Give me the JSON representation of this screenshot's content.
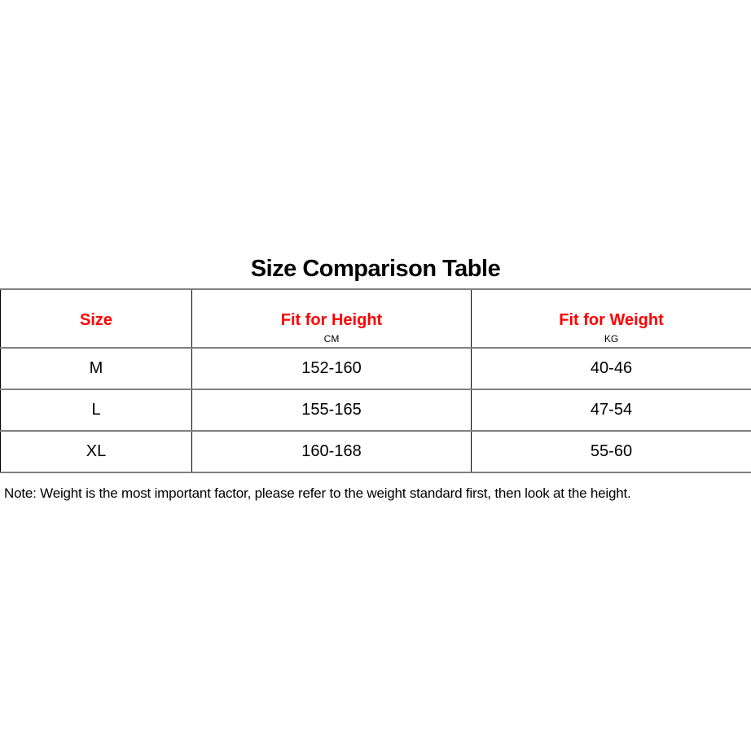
{
  "title": "Size Comparison Table",
  "table": {
    "headers": [
      {
        "label": "Size",
        "unit": ""
      },
      {
        "label": "Fit for Height",
        "unit": "CM"
      },
      {
        "label": "Fit for Weight",
        "unit": "KG"
      }
    ],
    "rows": [
      [
        "M",
        "152-160",
        "40-46"
      ],
      [
        "L",
        "155-165",
        "47-54"
      ],
      [
        "XL",
        "160-168",
        "55-60"
      ]
    ]
  },
  "note": "Note: Weight is the most important factor, please refer to the weight standard first, then look at the height.",
  "colors": {
    "header_text": "#ff0000",
    "row_border": "#808080"
  }
}
